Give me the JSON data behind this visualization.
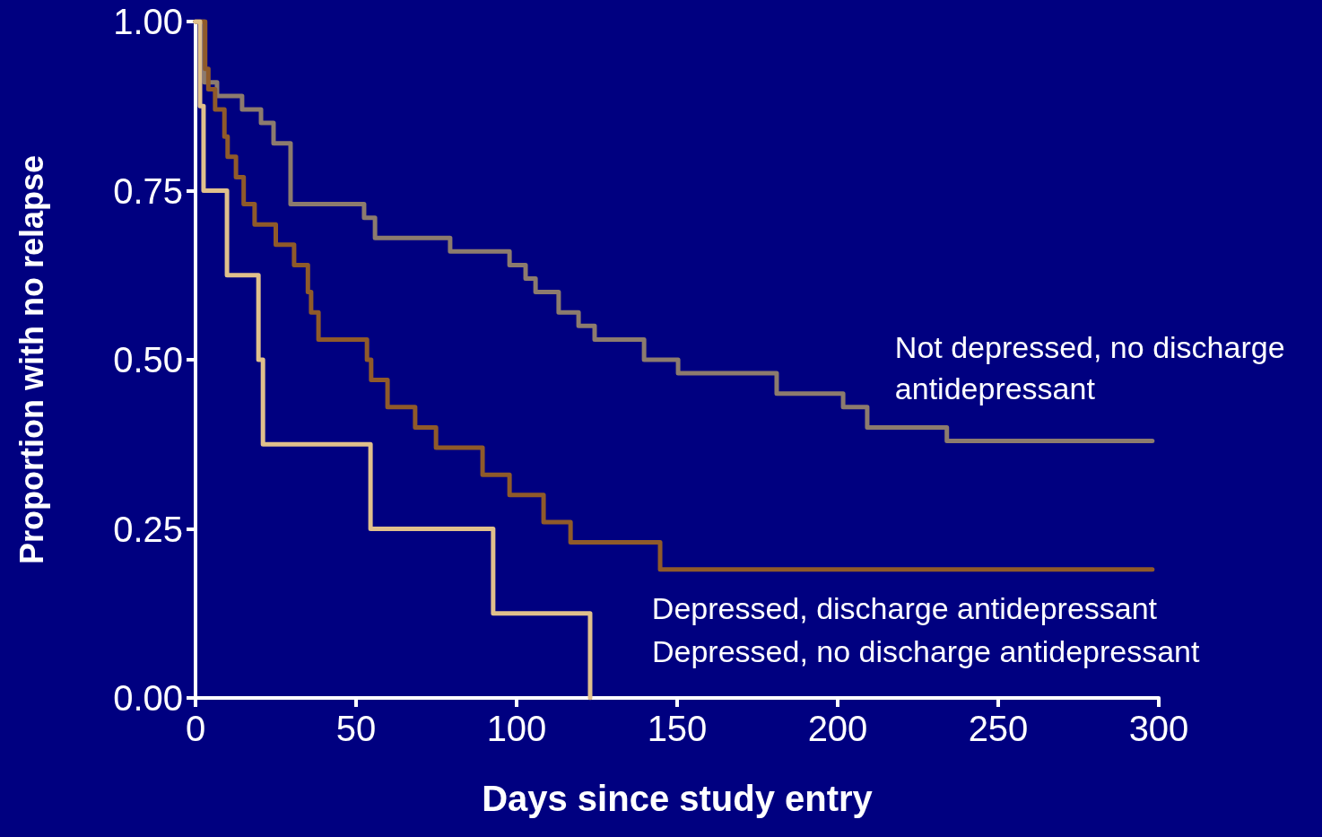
{
  "chart_data": {
    "type": "step",
    "xlabel": "Days since study entry",
    "ylabel": "Proportion with no relapse",
    "xlim": [
      0,
      300
    ],
    "xticks": [
      0,
      50,
      100,
      150,
      200,
      250,
      300
    ],
    "ylim": [
      0,
      1
    ],
    "yticks": [
      {
        "value": 0,
        "label": "0.00"
      },
      {
        "value": 0.25,
        "label": "0.25"
      },
      {
        "value": 0.5,
        "label": "0.50"
      },
      {
        "value": 0.75,
        "label": "0.75"
      },
      {
        "value": 1,
        "label": "1.00"
      }
    ],
    "grid": false,
    "legend": false,
    "marker": "none",
    "line_style": "solid",
    "series": [
      {
        "name": "Not depressed, no discharge antidepressant",
        "color": "#8c7b6e",
        "x": [
          0,
          2.8,
          6.7,
          14.5,
          20.4,
          24.3,
          29.6,
          52.5,
          55.9,
          79.3,
          97.8,
          102.8,
          105.9,
          113.1,
          119.3,
          124.3,
          139.7,
          150.3,
          181,
          201.7,
          209.2,
          234,
          298
        ],
        "values": [
          1,
          0.91,
          0.89,
          0.87,
          0.85,
          0.82,
          0.73,
          0.71,
          0.68,
          0.66,
          0.64,
          0.62,
          0.6,
          0.57,
          0.55,
          0.53,
          0.5,
          0.48,
          0.45,
          0.43,
          0.4,
          0.38,
          0.38
        ]
      },
      {
        "name": "Depressed, discharge antidepressant",
        "color": "#8f5a2a",
        "x": [
          0,
          3,
          4,
          6.1,
          9,
          10,
          12.6,
          15,
          18.4,
          25,
          30.7,
          35,
          36,
          38.3,
          53.4,
          54.7,
          59.8,
          68.4,
          74.9,
          89.4,
          97.8,
          108.4,
          116.8,
          144.7,
          298
        ],
        "values": [
          1,
          0.93,
          0.9,
          0.87,
          0.83,
          0.8,
          0.77,
          0.73,
          0.7,
          0.67,
          0.64,
          0.6,
          0.57,
          0.53,
          0.5,
          0.47,
          0.43,
          0.4,
          0.37,
          0.33,
          0.3,
          0.26,
          0.23,
          0.19,
          0.19
        ]
      },
      {
        "name": "Depressed, no discharge antidepressant",
        "color": "#e0c08c",
        "x": [
          0,
          1.4,
          2.5,
          9.8,
          19.6,
          21,
          54.5,
          92.7,
          122.9
        ],
        "values": [
          1,
          0.875,
          0.75,
          0.625,
          0.5,
          0.375,
          0.25,
          0.125,
          0
        ]
      }
    ]
  }
}
